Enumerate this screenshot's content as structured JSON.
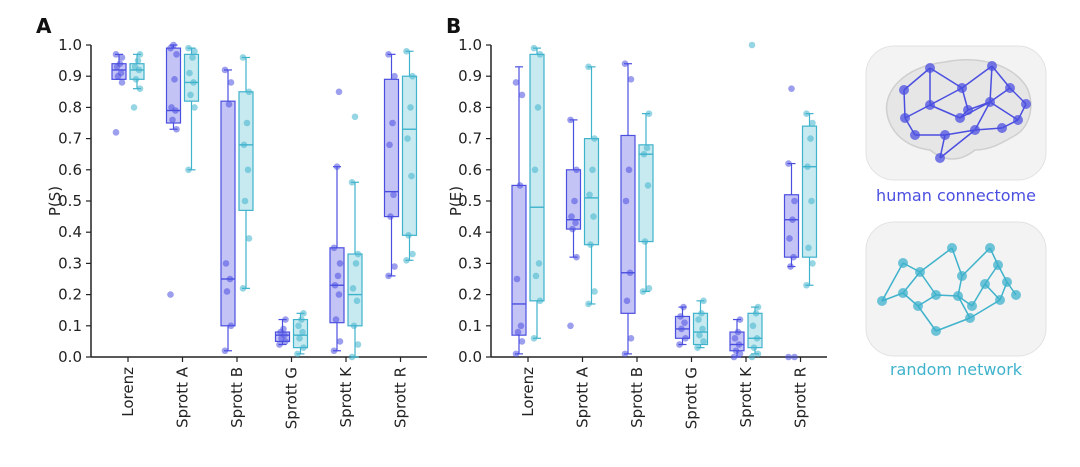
{
  "colors": {
    "human": "#4b4fe0",
    "human_fill": "#b9b9f4",
    "random": "#3fb2cc",
    "random_fill": "#bde6ef",
    "axis": "#222222"
  },
  "chart_data": [
    {
      "panel": "A",
      "type": "box",
      "ylabel": "P(S)",
      "ylim": [
        0,
        1
      ],
      "yticks": [
        "0.0",
        "0.1",
        "0.2",
        "0.3",
        "0.4",
        "0.5",
        "0.6",
        "0.7",
        "0.8",
        "0.9",
        "1.0"
      ],
      "categories": [
        "Lorenz",
        "Sprott A",
        "Sprott B",
        "Sprott G",
        "Sprott K",
        "Sprott R"
      ],
      "series": [
        {
          "network": "human",
          "boxes": [
            {
              "whislo": 0.89,
              "q1": 0.89,
              "med": 0.92,
              "q3": 0.94,
              "whishi": 0.97,
              "points": [
                0.72,
                0.88,
                0.9,
                0.91,
                0.93,
                0.94,
                0.96,
                0.97
              ]
            },
            {
              "whislo": 0.73,
              "q1": 0.75,
              "med": 0.79,
              "q3": 0.99,
              "whishi": 1.0,
              "points": [
                0.2,
                0.73,
                0.76,
                0.79,
                0.8,
                0.89,
                0.97,
                0.99,
                1.0
              ]
            },
            {
              "whislo": 0.02,
              "q1": 0.1,
              "med": 0.25,
              "q3": 0.82,
              "whishi": 0.92,
              "points": [
                0.02,
                0.1,
                0.21,
                0.25,
                0.3,
                0.81,
                0.88,
                0.92
              ]
            },
            {
              "whislo": 0.04,
              "q1": 0.05,
              "med": 0.07,
              "q3": 0.08,
              "whishi": 0.12,
              "points": [
                0.04,
                0.05,
                0.06,
                0.07,
                0.08,
                0.09,
                0.12
              ]
            },
            {
              "whislo": 0.02,
              "q1": 0.11,
              "med": 0.23,
              "q3": 0.35,
              "whishi": 0.61,
              "points": [
                0.02,
                0.05,
                0.12,
                0.2,
                0.23,
                0.26,
                0.3,
                0.35,
                0.61,
                0.85
              ]
            },
            {
              "whislo": 0.26,
              "q1": 0.45,
              "med": 0.53,
              "q3": 0.89,
              "whishi": 0.97,
              "points": [
                0.26,
                0.29,
                0.45,
                0.52,
                0.68,
                0.75,
                0.9,
                0.97
              ]
            }
          ]
        },
        {
          "network": "random",
          "boxes": [
            {
              "whislo": 0.86,
              "q1": 0.89,
              "med": 0.92,
              "q3": 0.94,
              "whishi": 0.97,
              "points": [
                0.8,
                0.86,
                0.89,
                0.92,
                0.93,
                0.95,
                0.97
              ]
            },
            {
              "whislo": 0.6,
              "q1": 0.82,
              "med": 0.88,
              "q3": 0.97,
              "whishi": 0.99,
              "points": [
                0.6,
                0.8,
                0.84,
                0.88,
                0.91,
                0.96,
                0.98,
                0.99
              ]
            },
            {
              "whislo": 0.22,
              "q1": 0.47,
              "med": 0.68,
              "q3": 0.85,
              "whishi": 0.96,
              "points": [
                0.22,
                0.38,
                0.5,
                0.6,
                0.68,
                0.75,
                0.85,
                0.96
              ]
            },
            {
              "whislo": 0.01,
              "q1": 0.03,
              "med": 0.07,
              "q3": 0.12,
              "whishi": 0.14,
              "points": [
                0.01,
                0.03,
                0.06,
                0.08,
                0.1,
                0.12,
                0.14
              ]
            },
            {
              "whislo": 0.0,
              "q1": 0.1,
              "med": 0.2,
              "q3": 0.33,
              "whishi": 0.56,
              "points": [
                0.0,
                0.04,
                0.1,
                0.18,
                0.22,
                0.3,
                0.33,
                0.56,
                0.77
              ]
            },
            {
              "whislo": 0.31,
              "q1": 0.39,
              "med": 0.73,
              "q3": 0.9,
              "whishi": 0.98,
              "points": [
                0.31,
                0.33,
                0.39,
                0.58,
                0.7,
                0.8,
                0.9,
                0.98
              ]
            }
          ]
        }
      ]
    },
    {
      "panel": "B",
      "type": "box",
      "ylabel": "P(E)",
      "ylim": [
        0,
        1
      ],
      "yticks": [
        "0.0",
        "0.1",
        "0.2",
        "0.3",
        "0.4",
        "0.5",
        "0.6",
        "0.7",
        "0.8",
        "0.9",
        "1.0"
      ],
      "categories": [
        "Lorenz",
        "Sprott A",
        "Sprott B",
        "Sprott G",
        "Sprott K",
        "Sprott R"
      ],
      "series": [
        {
          "network": "human",
          "boxes": [
            {
              "whislo": 0.01,
              "q1": 0.07,
              "med": 0.17,
              "q3": 0.55,
              "whishi": 0.93,
              "points": [
                0.01,
                0.05,
                0.08,
                0.1,
                0.25,
                0.55,
                0.84,
                0.88
              ]
            },
            {
              "whislo": 0.32,
              "q1": 0.41,
              "med": 0.44,
              "q3": 0.6,
              "whishi": 0.76,
              "points": [
                0.1,
                0.32,
                0.41,
                0.43,
                0.45,
                0.5,
                0.6,
                0.76
              ]
            },
            {
              "whislo": 0.01,
              "q1": 0.14,
              "med": 0.27,
              "q3": 0.71,
              "whishi": 0.94,
              "points": [
                0.01,
                0.06,
                0.18,
                0.27,
                0.5,
                0.6,
                0.89,
                0.94
              ]
            },
            {
              "whislo": 0.04,
              "q1": 0.06,
              "med": 0.09,
              "q3": 0.13,
              "whishi": 0.16,
              "points": [
                0.04,
                0.06,
                0.09,
                0.11,
                0.13,
                0.16
              ]
            },
            {
              "whislo": 0.0,
              "q1": 0.02,
              "med": 0.04,
              "q3": 0.08,
              "whishi": 0.12,
              "points": [
                0.0,
                0.01,
                0.02,
                0.04,
                0.06,
                0.08,
                0.12
              ]
            },
            {
              "whislo": 0.29,
              "q1": 0.32,
              "med": 0.44,
              "q3": 0.52,
              "whishi": 0.62,
              "points": [
                0.0,
                0.0,
                0.29,
                0.32,
                0.38,
                0.44,
                0.5,
                0.62,
                0.86
              ]
            }
          ]
        },
        {
          "network": "random",
          "boxes": [
            {
              "whislo": 0.06,
              "q1": 0.18,
              "med": 0.48,
              "q3": 0.97,
              "whishi": 0.99,
              "points": [
                0.06,
                0.18,
                0.26,
                0.3,
                0.6,
                0.8,
                0.97,
                0.99
              ]
            },
            {
              "whislo": 0.17,
              "q1": 0.36,
              "med": 0.51,
              "q3": 0.7,
              "whishi": 0.93,
              "points": [
                0.17,
                0.21,
                0.36,
                0.45,
                0.52,
                0.6,
                0.7,
                0.93
              ]
            },
            {
              "whislo": 0.21,
              "q1": 0.37,
              "med": 0.65,
              "q3": 0.68,
              "whishi": 0.78,
              "points": [
                0.21,
                0.22,
                0.37,
                0.55,
                0.65,
                0.67,
                0.78
              ]
            },
            {
              "whislo": 0.03,
              "q1": 0.04,
              "med": 0.08,
              "q3": 0.14,
              "whishi": 0.18,
              "points": [
                0.03,
                0.05,
                0.07,
                0.09,
                0.12,
                0.14,
                0.18
              ]
            },
            {
              "whislo": 0.01,
              "q1": 0.03,
              "med": 0.06,
              "q3": 0.14,
              "whishi": 0.16,
              "points": [
                0.0,
                0.01,
                0.03,
                0.06,
                0.1,
                0.14,
                0.16,
                1.0
              ]
            },
            {
              "whislo": 0.23,
              "q1": 0.32,
              "med": 0.61,
              "q3": 0.74,
              "whishi": 0.78,
              "points": [
                0.23,
                0.3,
                0.35,
                0.5,
                0.61,
                0.7,
                0.75,
                0.78
              ]
            }
          ]
        }
      ]
    }
  ],
  "panel_letters": [
    "A",
    "B"
  ],
  "networks": {
    "human": {
      "label": "human connectome"
    },
    "random": {
      "label": "random network"
    }
  }
}
